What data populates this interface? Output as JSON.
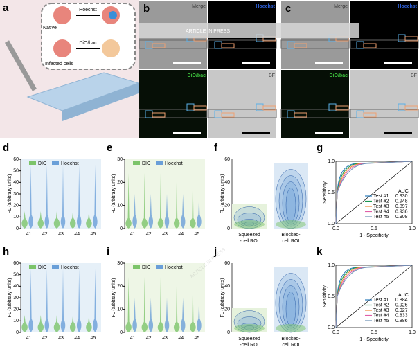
{
  "watermark": "ARTICLE IN PRESS",
  "panel_a": {
    "label": "a",
    "native": "Native",
    "infected": "Infected cells",
    "stain1": "Hoechst",
    "stain2": "DiO/bac"
  },
  "image_panels": [
    {
      "label": "b",
      "tiles": [
        "Merge",
        "Hoechst",
        "DiO/bac",
        "BF"
      ]
    },
    {
      "label": "c",
      "tiles": [
        "Merge",
        "Hoechst",
        "DiO/bac",
        "BF"
      ]
    }
  ],
  "violin_panels": [
    {
      "label": "d",
      "legend": [
        "DIO",
        "Hoechst"
      ],
      "y_label": "FL (arbitrary units)",
      "yticks": [
        0,
        10,
        20,
        30,
        40,
        50,
        60
      ],
      "categories": [
        "#1",
        "#2",
        "#3",
        "#4",
        "#5"
      ]
    },
    {
      "label": "e",
      "legend": [
        "DIO",
        "Hoechst"
      ],
      "y_label": "FL (arbitrary units)",
      "yticks": [
        0,
        10,
        20,
        30
      ],
      "categories": [
        "#1",
        "#2",
        "#3",
        "#4",
        "#5"
      ]
    },
    {
      "label": "h",
      "legend": [
        "DIO",
        "Hoechst"
      ],
      "y_label": "FL (arbitrary units)",
      "yticks": [
        0,
        10,
        20,
        30,
        40,
        50,
        60
      ],
      "categories": [
        "#1",
        "#2",
        "#3",
        "#4",
        "#5"
      ]
    },
    {
      "label": "i",
      "legend": [
        "DIO",
        "Hoechst"
      ],
      "y_label": "FL (arbitrary units)",
      "yticks": [
        0,
        10,
        20,
        30
      ],
      "categories": [
        "#1",
        "#2",
        "#3",
        "#4",
        "#5"
      ]
    }
  ],
  "density_panels": [
    {
      "label": "f",
      "y_label": "FL (arbitrary units)",
      "yticks": [
        0,
        20,
        40,
        60
      ],
      "categories": [
        [
          "Squeezed",
          "-cell ROI"
        ],
        [
          "Blocked-",
          "cell ROI"
        ]
      ]
    },
    {
      "label": "j",
      "y_label": "FL (arbitrary units)",
      "yticks": [
        0,
        20,
        40,
        60
      ],
      "categories": [
        [
          "Squeezed",
          "-cell ROI"
        ],
        [
          "Blocked-",
          "cell ROI"
        ]
      ]
    }
  ],
  "roc_panels": [
    {
      "label": "g",
      "y_label": "Sensitivity",
      "x_label": "1 - Specificity",
      "ticks": [
        "0.0",
        "0.5",
        "1.0"
      ],
      "auc_title": "AUC",
      "tests": [
        {
          "name": "Test #1",
          "auc": "0.930"
        },
        {
          "name": "Test #2",
          "auc": "0.948"
        },
        {
          "name": "Test #3",
          "auc": "0.897"
        },
        {
          "name": "Test #4",
          "auc": "0.936"
        },
        {
          "name": "Test #5",
          "auc": "0.908"
        }
      ]
    },
    {
      "label": "k",
      "y_label": "Sensitivity",
      "x_label": "1 - Specificity",
      "ticks": [
        "0.0",
        "0.5",
        "1.0"
      ],
      "auc_title": "AUC",
      "tests": [
        {
          "name": "Test #1",
          "auc": "0.884"
        },
        {
          "name": "Test #2",
          "auc": "0.926"
        },
        {
          "name": "Test #3",
          "auc": "0.927"
        },
        {
          "name": "Test #4",
          "auc": "0.833"
        },
        {
          "name": "Test #5",
          "auc": "0.886"
        }
      ]
    }
  ]
}
